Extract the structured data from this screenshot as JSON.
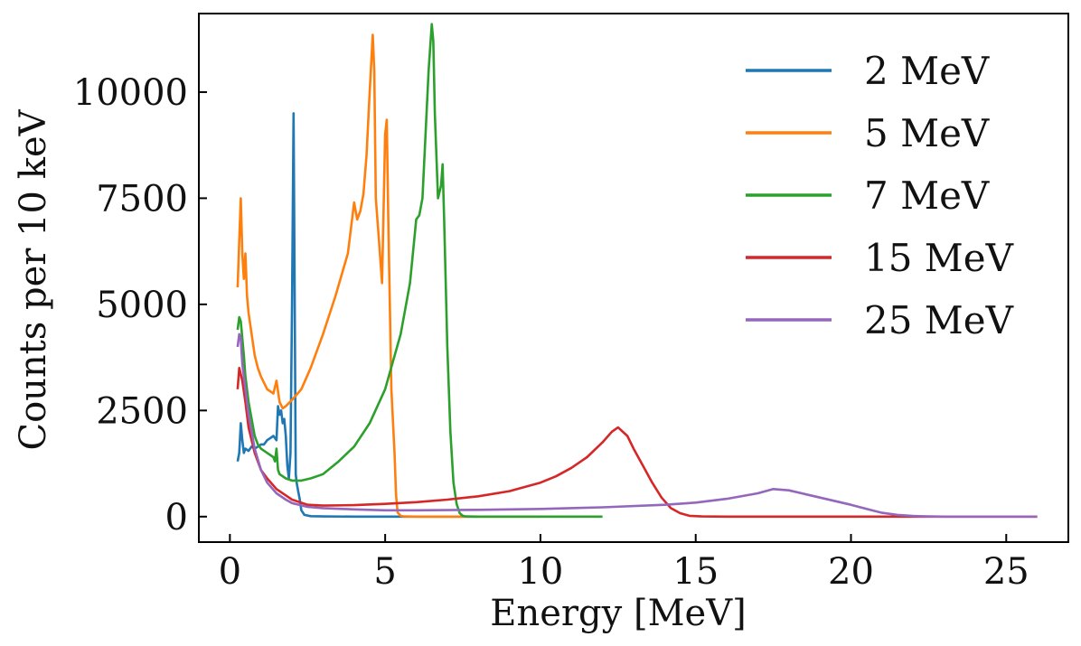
{
  "chart_data": {
    "type": "line",
    "title": "",
    "xlabel": "Energy [MeV]",
    "ylabel": "Counts per 10 keV",
    "xlim": [
      -1,
      27
    ],
    "ylim": [
      -600,
      11850
    ],
    "xticks": [
      0,
      5,
      10,
      15,
      20,
      25
    ],
    "yticks": [
      0,
      2500,
      5000,
      7500,
      10000
    ],
    "legend_position": "top-right",
    "grid": false,
    "series": [
      {
        "name": "2 MeV",
        "color": "#1f77b4",
        "x": [
          0.25,
          0.3,
          0.35,
          0.4,
          0.45,
          0.5,
          0.6,
          0.7,
          0.8,
          0.9,
          1.0,
          1.1,
          1.2,
          1.3,
          1.4,
          1.5,
          1.55,
          1.6,
          1.65,
          1.7,
          1.75,
          1.8,
          1.85,
          1.9,
          1.95,
          2.0,
          2.05,
          2.08,
          2.12,
          2.15,
          2.2,
          2.25,
          2.3,
          2.4,
          2.6,
          3,
          4,
          6,
          8
        ],
        "y": [
          1300,
          1500,
          2200,
          1800,
          1500,
          1600,
          1550,
          1650,
          1600,
          1650,
          1700,
          1700,
          1800,
          1850,
          1900,
          1800,
          2600,
          2400,
          2500,
          2200,
          2300,
          1900,
          1200,
          900,
          1500,
          5000,
          9500,
          6000,
          1000,
          800,
          600,
          400,
          150,
          40,
          10,
          5,
          0,
          0,
          0
        ]
      },
      {
        "name": "5 MeV",
        "color": "#ff7f0e",
        "x": [
          0.25,
          0.3,
          0.35,
          0.4,
          0.45,
          0.5,
          0.55,
          0.6,
          0.7,
          0.8,
          0.9,
          1.0,
          1.2,
          1.4,
          1.5,
          1.6,
          1.7,
          1.8,
          2.0,
          2.3,
          2.6,
          3.0,
          3.4,
          3.8,
          4.0,
          4.1,
          4.2,
          4.3,
          4.4,
          4.5,
          4.6,
          4.65,
          4.7,
          4.8,
          4.9,
          5.0,
          5.05,
          5.1,
          5.15,
          5.2,
          5.3,
          5.35,
          5.4,
          5.5,
          5.6,
          6,
          8,
          10
        ],
        "y": [
          5400,
          6500,
          7500,
          6200,
          5600,
          6200,
          5200,
          4800,
          4300,
          3800,
          3500,
          3300,
          3000,
          2900,
          3200,
          2700,
          2550,
          2600,
          2750,
          3000,
          3500,
          4300,
          5200,
          6200,
          7400,
          7000,
          7200,
          7600,
          8500,
          10000,
          11350,
          10500,
          7500,
          6500,
          5500,
          9000,
          9350,
          7000,
          5000,
          3000,
          1500,
          500,
          100,
          20,
          5,
          0,
          0,
          0
        ]
      },
      {
        "name": "7 MeV",
        "color": "#2ca02c",
        "x": [
          0.25,
          0.3,
          0.35,
          0.4,
          0.45,
          0.5,
          0.6,
          0.7,
          0.8,
          0.9,
          1.0,
          1.2,
          1.4,
          1.45,
          1.5,
          1.55,
          1.6,
          1.8,
          2.0,
          2.3,
          2.6,
          3.0,
          3.5,
          4.0,
          4.5,
          5.0,
          5.5,
          5.8,
          6.0,
          6.1,
          6.2,
          6.3,
          6.4,
          6.5,
          6.55,
          6.6,
          6.7,
          6.8,
          6.85,
          6.9,
          7.0,
          7.1,
          7.2,
          7.3,
          7.4,
          7.5,
          7.6,
          8,
          10,
          12
        ],
        "y": [
          4400,
          4700,
          4600,
          4200,
          3800,
          3300,
          2700,
          2300,
          1900,
          1700,
          1600,
          1500,
          1400,
          1300,
          1600,
          1100,
          1000,
          900,
          850,
          850,
          900,
          1000,
          1300,
          1650,
          2200,
          3000,
          4300,
          5500,
          7000,
          7100,
          7500,
          9000,
          10500,
          11600,
          11200,
          9500,
          7500,
          7800,
          8300,
          7000,
          4000,
          2000,
          800,
          300,
          80,
          20,
          5,
          0,
          0,
          0
        ]
      },
      {
        "name": "15 MeV",
        "color": "#d62728",
        "x": [
          0.25,
          0.3,
          0.4,
          0.5,
          0.6,
          0.8,
          1.0,
          1.2,
          1.5,
          1.8,
          2.0,
          2.5,
          3,
          4,
          5,
          6,
          7,
          8,
          9,
          10,
          10.5,
          11,
          11.5,
          12,
          12.3,
          12.5,
          12.8,
          13.0,
          13.3,
          13.6,
          13.9,
          14.2,
          14.5,
          14.8,
          15.2,
          16,
          20,
          26
        ],
        "y": [
          3000,
          3500,
          3200,
          2700,
          2100,
          1500,
          1100,
          900,
          650,
          500,
          400,
          280,
          260,
          270,
          300,
          340,
          400,
          480,
          600,
          800,
          950,
          1150,
          1400,
          1750,
          2000,
          2100,
          1900,
          1600,
          1200,
          800,
          450,
          200,
          80,
          20,
          5,
          0,
          0,
          0
        ]
      },
      {
        "name": "25 MeV",
        "color": "#9467bd",
        "x": [
          0.25,
          0.3,
          0.35,
          0.4,
          0.5,
          0.6,
          0.8,
          1.0,
          1.2,
          1.5,
          1.8,
          2.0,
          2.5,
          3,
          4,
          5,
          6,
          8,
          10,
          12,
          14,
          15,
          16,
          17,
          17.5,
          18,
          19,
          20,
          20.5,
          21,
          21.5,
          22,
          22.5,
          23,
          26
        ],
        "y": [
          4000,
          4300,
          4200,
          3600,
          3000,
          2400,
          1600,
          1100,
          800,
          550,
          400,
          320,
          230,
          200,
          170,
          150,
          150,
          160,
          180,
          220,
          280,
          330,
          420,
          550,
          650,
          620,
          450,
          280,
          180,
          90,
          40,
          15,
          5,
          0,
          0
        ]
      }
    ]
  }
}
